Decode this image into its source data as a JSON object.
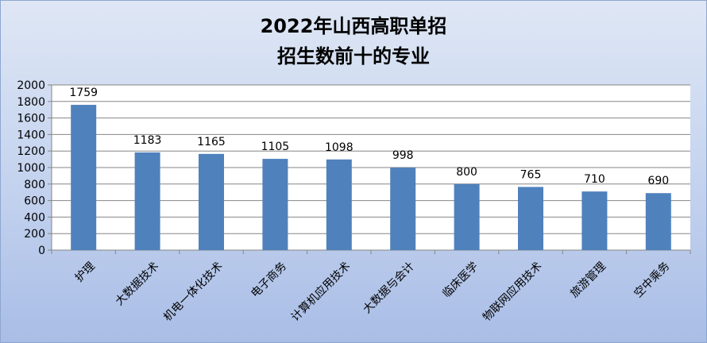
{
  "chart_data": {
    "type": "bar",
    "title_lines": [
      "2022年山西高职单招",
      "招生数前十的专业"
    ],
    "categories": [
      "护理",
      "大数据技术",
      "机电一体化技术",
      "电子商务",
      "计算机应用技术",
      "大数据与会计",
      "临床医学",
      "物联网应用技术",
      "旅游管理",
      "空中乘务"
    ],
    "values": [
      1759,
      1183,
      1165,
      1105,
      1098,
      998,
      800,
      765,
      710,
      690
    ],
    "ylim": [
      0,
      2000
    ],
    "yticks": [
      0,
      200,
      400,
      600,
      800,
      1000,
      1200,
      1400,
      1600,
      1800,
      2000
    ],
    "grid": true,
    "legend": "none",
    "bar_color": "#4f81bd"
  }
}
